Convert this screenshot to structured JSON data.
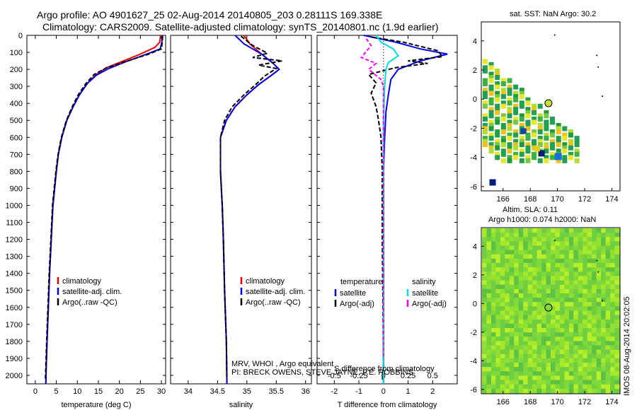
{
  "header": {
    "line1": "Argo profile: AO 4901627_25 02-Aug-2014 20140805_203 0.28111S 169.338E",
    "line2": "Climatology: CARS2009. Satellite-adjusted climatology: synTS_20140801.nc (1.9d earlier)"
  },
  "credits": {
    "line1": "MRV, WHOI , Argo equivalent",
    "line2": "PI: BRECK OWENS, STEVE JAYNE, P.E. ROBBINS",
    "line3": "S difference from climatology"
  },
  "stamp": "IMOS 08-Aug-2014 20:02:05",
  "maps": {
    "sst_title": "sat. SST: NaN Argo: 30.2",
    "sla_line1": "Altim. SLA: 0.11",
    "sla_line2": "Argo h1000: 0.074 h2000: NaN",
    "xticks": [
      "166",
      "168",
      "170",
      "172",
      "174"
    ],
    "yticks": [
      "4",
      "2",
      "0",
      "-2",
      "-4",
      "-6"
    ]
  },
  "colors": {
    "climatology": "#ee0000",
    "satellite": "#0000ee",
    "argo": "#000000",
    "satellite_s": "#00e0e0",
    "argo_s": "#ff00ff"
  },
  "chart_data": [
    {
      "type": "line",
      "panel": "temperature",
      "xlabel": "temperature (deg C)",
      "ylabel": "",
      "xlim": [
        -2,
        31
      ],
      "ylim": [
        2050,
        0
      ],
      "xticks": [
        0,
        5,
        10,
        15,
        20,
        25,
        30
      ],
      "yticks": [
        0,
        100,
        200,
        300,
        400,
        500,
        600,
        700,
        800,
        900,
        1000,
        1100,
        1200,
        1300,
        1400,
        1500,
        1600,
        1700,
        1800,
        1900,
        2000
      ],
      "legend": [
        "climatology",
        "satellite-adj. clim.",
        "Argo(..raw -QC)"
      ],
      "series": [
        {
          "name": "climatology",
          "points": [
            [
              29.8,
              0
            ],
            [
              29.6,
              40
            ],
            [
              28.5,
              70
            ],
            [
              25,
              110
            ],
            [
              21,
              150
            ],
            [
              17,
              190
            ],
            [
              14.5,
              230
            ],
            [
              12.5,
              280
            ],
            [
              10.5,
              350
            ],
            [
              9,
              420
            ],
            [
              7.5,
              500
            ],
            [
              6.3,
              600
            ],
            [
              5.5,
              700
            ],
            [
              5,
              800
            ],
            [
              4.6,
              900
            ],
            [
              4.2,
              1000
            ],
            [
              3.8,
              1200
            ],
            [
              3.4,
              1400
            ],
            [
              3.1,
              1600
            ],
            [
              2.8,
              1800
            ],
            [
              2.6,
              1950
            ],
            [
              2.5,
              2050
            ]
          ]
        },
        {
          "name": "satellite-adj. clim.",
          "points": [
            [
              30.2,
              0
            ],
            [
              30.1,
              40
            ],
            [
              29.7,
              80
            ],
            [
              26,
              115
            ],
            [
              21.5,
              155
            ],
            [
              17.5,
              195
            ],
            [
              14.5,
              235
            ],
            [
              12.3,
              285
            ],
            [
              10.5,
              350
            ],
            [
              9,
              420
            ],
            [
              7.5,
              500
            ],
            [
              6.3,
              600
            ],
            [
              5.5,
              700
            ],
            [
              5,
              800
            ],
            [
              4.6,
              900
            ],
            [
              4.2,
              1000
            ],
            [
              3.8,
              1200
            ],
            [
              3.4,
              1400
            ],
            [
              3.1,
              1600
            ],
            [
              2.8,
              1800
            ],
            [
              2.6,
              1950
            ],
            [
              2.5,
              2050
            ]
          ]
        },
        {
          "name": "Argo(..raw -QC)",
          "points": [
            [
              30.3,
              5
            ],
            [
              30.2,
              40
            ],
            [
              30,
              80
            ],
            [
              27,
              110
            ],
            [
              22,
              150
            ],
            [
              17,
              190
            ],
            [
              14,
              230
            ],
            [
              12,
              285
            ],
            [
              10.2,
              350
            ],
            [
              8.8,
              420
            ],
            [
              7.4,
              500
            ],
            [
              6.2,
              600
            ],
            [
              5.4,
              700
            ],
            [
              4.9,
              800
            ],
            [
              4.5,
              900
            ],
            [
              4.1,
              1000
            ],
            [
              3.7,
              1200
            ],
            [
              3.3,
              1400
            ],
            [
              3,
              1600
            ],
            [
              2.7,
              1800
            ],
            [
              2.5,
              1950
            ],
            [
              2.4,
              2030
            ]
          ]
        }
      ]
    },
    {
      "type": "line",
      "panel": "salinity",
      "xlabel": "salinity",
      "xlim": [
        33.7,
        36.1
      ],
      "ylim": [
        2050,
        0
      ],
      "xticks": [
        34,
        34.5,
        35,
        35.5,
        36
      ],
      "legend": [
        "climatology",
        "satellite-adj. clim.",
        "Argo(..raw -QC)"
      ],
      "series": [
        {
          "name": "climatology",
          "points": [
            [
              34.95,
              0
            ],
            [
              35.05,
              50
            ],
            [
              35.25,
              110
            ],
            [
              35.45,
              165
            ],
            [
              35.55,
              200
            ],
            [
              35.4,
              240
            ],
            [
              35.2,
              290
            ],
            [
              35,
              350
            ],
            [
              34.8,
              420
            ],
            [
              34.65,
              500
            ],
            [
              34.55,
              600
            ],
            [
              34.55,
              800
            ],
            [
              34.58,
              1000
            ],
            [
              34.6,
              1200
            ],
            [
              34.62,
              1500
            ],
            [
              34.65,
              1800
            ],
            [
              34.66,
              2050
            ]
          ]
        },
        {
          "name": "satellite-adj. clim.",
          "points": [
            [
              34.8,
              0
            ],
            [
              34.95,
              50
            ],
            [
              35.25,
              110
            ],
            [
              35.45,
              165
            ],
            [
              35.55,
              200
            ],
            [
              35.4,
              240
            ],
            [
              35.2,
              290
            ],
            [
              35,
              350
            ],
            [
              34.8,
              420
            ],
            [
              34.65,
              500
            ],
            [
              34.55,
              600
            ],
            [
              34.55,
              800
            ],
            [
              34.58,
              1000
            ],
            [
              34.6,
              1200
            ],
            [
              34.62,
              1500
            ],
            [
              34.65,
              1800
            ],
            [
              34.66,
              2050
            ]
          ]
        },
        {
          "name": "Argo(..raw -QC)",
          "points": [
            [
              34.9,
              5
            ],
            [
              35.1,
              60
            ],
            [
              35.35,
              105
            ],
            [
              35.1,
              130
            ],
            [
              35.6,
              150
            ],
            [
              35.2,
              175
            ],
            [
              35.5,
              195
            ],
            [
              35.3,
              240
            ],
            [
              35.15,
              290
            ],
            [
              34.95,
              350
            ],
            [
              34.75,
              420
            ],
            [
              34.62,
              500
            ],
            [
              34.55,
              600
            ],
            [
              34.55,
              800
            ],
            [
              34.58,
              1000
            ],
            [
              34.6,
              1200
            ],
            [
              34.62,
              1500
            ],
            [
              34.65,
              1800
            ],
            [
              34.66,
              2030
            ]
          ]
        }
      ]
    },
    {
      "type": "line",
      "panel": "difference",
      "xlabel": "T difference from climatology",
      "xlim": [
        -2.7,
        3.0
      ],
      "ylim": [
        2050,
        0
      ],
      "xticks": [
        -2,
        -1,
        0,
        1,
        2
      ],
      "secondary_xticks": [
        "-0.5",
        "-0.25",
        "0",
        "0.25",
        "0.5"
      ],
      "secondary_xlabel": "S difference from climatology",
      "legend_headers": [
        "temperature",
        "salinity"
      ],
      "legend": [
        "satellite",
        "Argo(-adj)",
        "satellite",
        "Argo(-adj)"
      ],
      "series": [
        {
          "name": "satellite",
          "points": [
            [
              -0.8,
              0
            ],
            [
              0.5,
              40
            ],
            [
              1.5,
              80
            ],
            [
              2.6,
              110
            ],
            [
              1.5,
              150
            ],
            [
              0.6,
              200
            ],
            [
              0.3,
              260
            ],
            [
              0.2,
              350
            ],
            [
              0.1,
              450
            ],
            [
              0.05,
              600
            ],
            [
              0,
              800
            ],
            [
              0,
              1200
            ],
            [
              0,
              1600
            ],
            [
              0,
              2050
            ]
          ]
        },
        {
          "name": "Argo(-adj)",
          "points": [
            [
              -0.5,
              10
            ],
            [
              0.8,
              40
            ],
            [
              2.2,
              90
            ],
            [
              2.4,
              125
            ],
            [
              1,
              150
            ],
            [
              1.8,
              165
            ],
            [
              0.5,
              190
            ],
            [
              -0.6,
              230
            ],
            [
              -0.3,
              280
            ],
            [
              -0.5,
              340
            ],
            [
              -0.3,
              420
            ],
            [
              -0.2,
              500
            ],
            [
              -0.1,
              600
            ],
            [
              -0.05,
              800
            ],
            [
              -0.05,
              1200
            ],
            [
              -0.02,
              1600
            ],
            [
              0,
              1950
            ],
            [
              -0.05,
              2030
            ]
          ]
        },
        {
          "name": "satellite",
          "points": [
            [
              -0.3,
              0
            ],
            [
              -0.1,
              40
            ],
            [
              0.4,
              80
            ],
            [
              0.6,
              120
            ],
            [
              0.2,
              160
            ],
            [
              0.1,
              200
            ],
            [
              0.05,
              300
            ],
            [
              0,
              500
            ],
            [
              0,
              1000
            ],
            [
              0,
              2050
            ]
          ]
        },
        {
          "name": "Argo(-adj)",
          "points": [
            [
              -0.7,
              20
            ],
            [
              -0.5,
              60
            ],
            [
              -0.9,
              130
            ],
            [
              -0.3,
              165
            ],
            [
              -0.6,
              200
            ],
            [
              -0.1,
              260
            ],
            [
              0,
              300
            ],
            [
              0,
              1500
            ],
            [
              0,
              1900
            ]
          ]
        }
      ]
    },
    {
      "type": "heatmap",
      "panel": "sat. SST",
      "xlim": [
        164.4,
        174.6
      ],
      "ylim": [
        -6.3,
        5.3
      ],
      "xticks": [
        166,
        168,
        170,
        172,
        174
      ],
      "yticks": [
        4,
        2,
        0,
        -2,
        -4,
        -6
      ],
      "argo_position": [
        169.338,
        -0.28111
      ]
    },
    {
      "type": "heatmap",
      "panel": "Altim. SLA",
      "xlim": [
        164.4,
        174.6
      ],
      "ylim": [
        -6.3,
        5.3
      ],
      "xticks": [
        166,
        168,
        170,
        172,
        174
      ],
      "yticks": [
        4,
        2,
        0,
        -2,
        -4,
        -6
      ],
      "argo_position": [
        169.338,
        -0.28111
      ]
    }
  ]
}
